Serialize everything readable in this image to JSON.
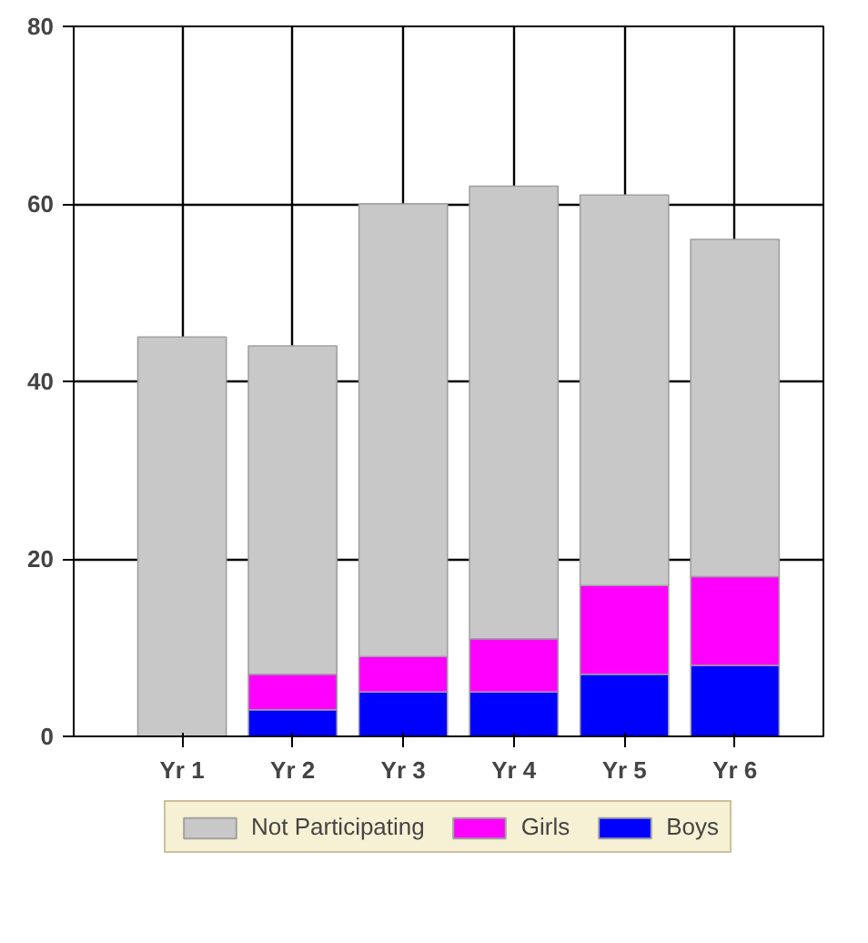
{
  "chart_data": {
    "type": "bar",
    "stacked": true,
    "categories": [
      "Yr 1",
      "Yr 2",
      "Yr 3",
      "Yr 4",
      "Yr 5",
      "Yr 6"
    ],
    "series": [
      {
        "name": "Boys",
        "color": "#0000ff",
        "values": [
          0,
          3,
          5,
          5,
          7,
          8
        ]
      },
      {
        "name": "Girls",
        "color": "#ff00ff",
        "values": [
          0,
          4,
          4,
          6,
          10,
          10
        ]
      },
      {
        "name": "Not Participating",
        "color": "#c8c8c8",
        "values": [
          45,
          37,
          51,
          51,
          44,
          38
        ]
      }
    ],
    "ylim": [
      0,
      80
    ],
    "yticks": [
      0,
      20,
      40,
      60,
      80
    ],
    "grid": true,
    "legend": "bottom"
  }
}
